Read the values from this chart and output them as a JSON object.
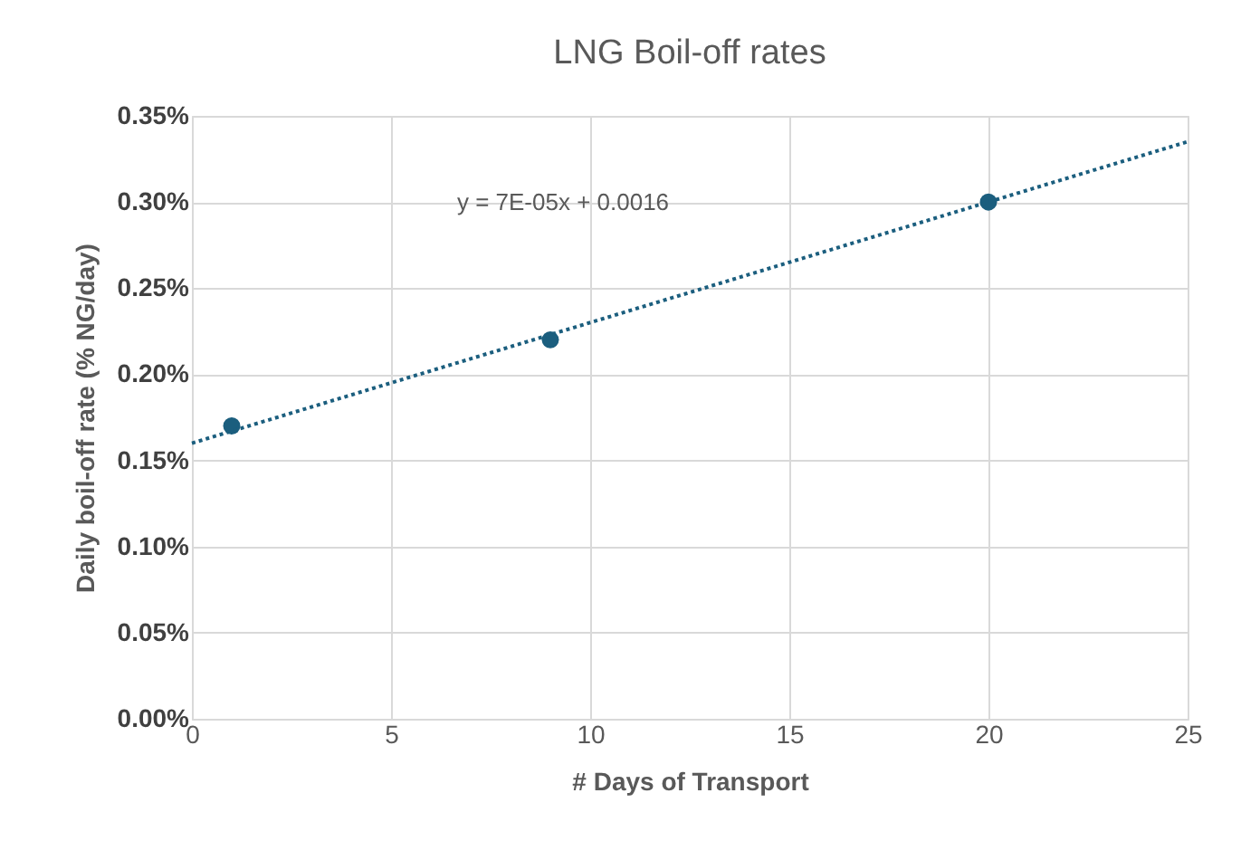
{
  "chart_data": {
    "type": "scatter",
    "title": "LNG Boil-off rates",
    "xlabel": "# Days of Transport",
    "ylabel": "Daily boil-off rate (% NG/day)",
    "series": [
      {
        "color": "#1b5e7e",
        "x": [
          1,
          9,
          20
        ],
        "values": [
          0.17,
          0.22,
          0.3
        ],
        "marker": "circle"
      },
      {
        "type": "line",
        "color": "#1b5e7e",
        "x": [
          0,
          25
        ],
        "values": [
          0.16,
          0.335
        ],
        "line_style": "dotted",
        "marker": "none"
      }
    ],
    "annotations": [
      "y = 7E-05x + 0.0016"
    ],
    "xlim": [
      0,
      25
    ],
    "xticks": [
      0,
      5,
      10,
      15,
      20,
      25
    ],
    "ylim": [
      0,
      0.35
    ],
    "yticks": [
      {
        "value": 0,
        "label": "0.00%"
      },
      {
        "value": 0.05,
        "label": "0.05%"
      },
      {
        "value": 0.1,
        "label": "0.10%"
      },
      {
        "value": 0.15,
        "label": "0.15%"
      },
      {
        "value": 0.2,
        "label": "0.20%"
      },
      {
        "value": 0.25,
        "label": "0.25%"
      },
      {
        "value": 0.3,
        "label": "0.30%"
      },
      {
        "value": 0.35,
        "label": "0.35%"
      }
    ],
    "grid": true
  }
}
